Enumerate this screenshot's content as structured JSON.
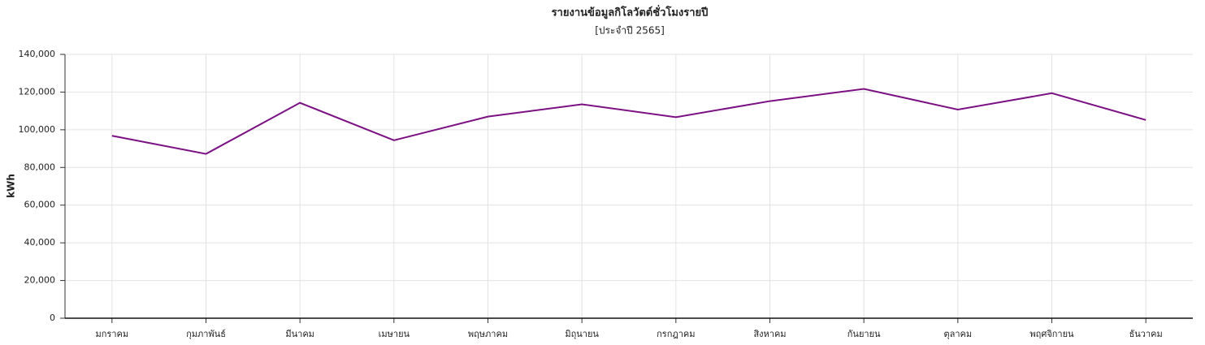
{
  "chart_data": {
    "type": "line",
    "title": "รายงานข้อมูลกิโลวัตต์ชั่วโมงรายปี",
    "subtitle": "[ประจำปี 2565]",
    "y_label": "kWh",
    "categories": [
      "มกราคม",
      "กุมภาพันธ์",
      "มีนาคม",
      "เมษายน",
      "พฤษภาคม",
      "มิถุนายน",
      "กรกฎาคม",
      "สิงหาคม",
      "กันยายน",
      "ตุลาคม",
      "พฤศจิกายน",
      "ธันวาคม"
    ],
    "values": [
      96800,
      87200,
      114300,
      94400,
      107000,
      113500,
      106700,
      115200,
      121700,
      110700,
      119400,
      105200
    ],
    "color": "#7b1183",
    "ylim": [
      0,
      140000
    ],
    "yticks": [
      0,
      {
        "value": 20000,
        "label": "20,000"
      },
      {
        "value": 40000,
        "label": "40,000"
      },
      {
        "value": 60000,
        "label": "60,000"
      },
      {
        "value": 80000,
        "label": "80,000"
      },
      {
        "value": 100000,
        "label": "100,000"
      },
      {
        "value": 120000,
        "label": "120,000"
      },
      {
        "value": 140000,
        "label": "140,000"
      }
    ],
    "grid": true
  }
}
